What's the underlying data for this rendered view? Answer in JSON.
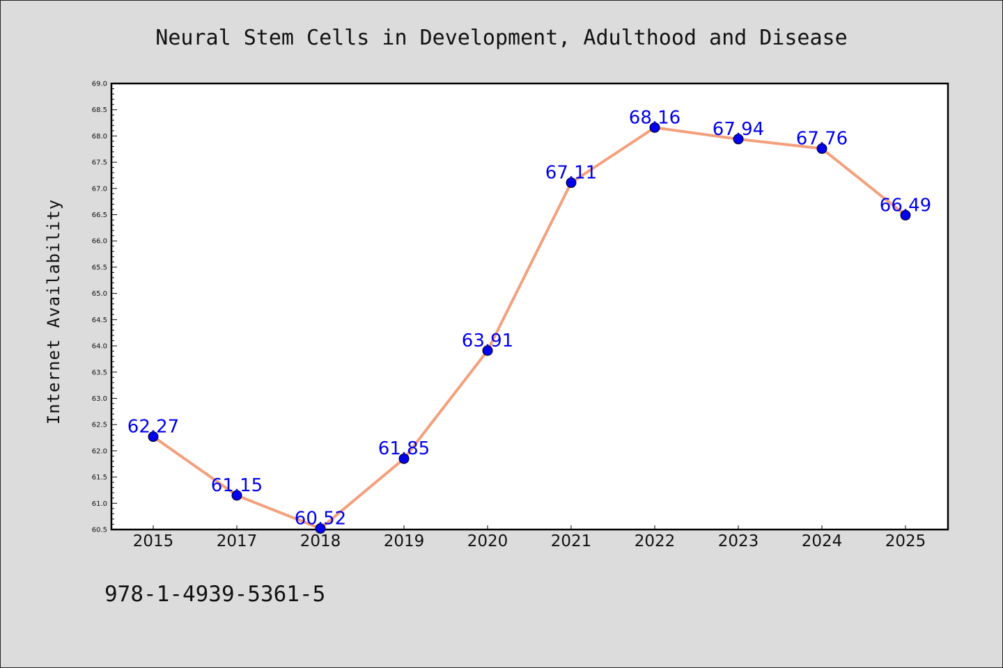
{
  "chart_data": {
    "type": "line",
    "title": "Neural Stem Cells in Development, Adulthood and Disease",
    "xlabel": "",
    "ylabel": "Internet Availability",
    "categories": [
      "2015",
      "2017",
      "2018",
      "2019",
      "2020",
      "2021",
      "2022",
      "2023",
      "2024",
      "2025"
    ],
    "values": [
      62.27,
      61.15,
      60.52,
      61.85,
      63.91,
      67.11,
      68.16,
      67.94,
      67.76,
      66.49
    ],
    "data_labels": [
      "62.27",
      "61.15",
      "60.52",
      "61.85",
      "63.91",
      "67.11",
      "68.16",
      "67.94",
      "67.76",
      "66.49"
    ],
    "ylim": [
      60.5,
      69.0
    ],
    "yticks": [
      "60.5",
      "61.0",
      "61.5",
      "62.0",
      "62.5",
      "63.0",
      "63.5",
      "64.0",
      "64.5",
      "65.0",
      "65.5",
      "66.0",
      "66.5",
      "67.0",
      "67.5",
      "68.0",
      "68.5",
      "69.0"
    ],
    "grid": false,
    "legend": "none",
    "line_color": "#f4a07c",
    "marker_color": "#0000ee",
    "label_color": "#0000ee",
    "plot_background": "#ffffff",
    "figure_background": "#dcdcdc"
  },
  "footer": {
    "isbn": "978-1-4939-5361-5"
  }
}
